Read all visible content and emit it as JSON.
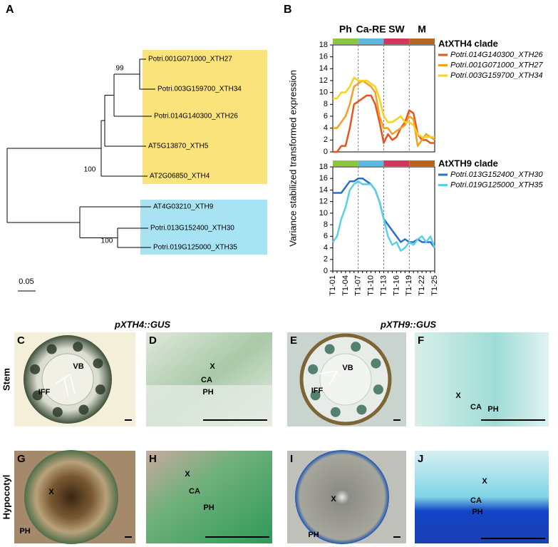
{
  "figure": {
    "panel_a": {
      "letter": "A",
      "leaves": [
        "Potri.001G071000_XTH27",
        "Potri.003G159700_XTH34",
        "Potri.014G140300_XTH26",
        "AT5G13870_XTH5",
        "AT2G06850_XTH4",
        "AT4G03210_XTH9",
        "Potri.013G152400_XTH30",
        "Potri.019G125000_XTH35"
      ],
      "bootstrap": [
        99,
        100,
        100
      ],
      "scale": 0.05
    },
    "panel_b": {
      "letter": "B"
    },
    "column_headings": [
      "pXTH4::GUS",
      "pXTH9::GUS"
    ],
    "row_labels": [
      "Stem",
      "Hypocotyl"
    ],
    "panels": [
      {
        "letter": "C",
        "labels": [
          "VB",
          "IFF"
        ]
      },
      {
        "letter": "D",
        "labels": [
          "X",
          "CA",
          "PH"
        ]
      },
      {
        "letter": "E",
        "labels": [
          "VB",
          "IFF"
        ]
      },
      {
        "letter": "F",
        "labels": [
          "X",
          "CA",
          "PH"
        ]
      },
      {
        "letter": "G",
        "labels": [
          "X",
          "PH"
        ]
      },
      {
        "letter": "H",
        "labels": [
          "X",
          "CA",
          "PH"
        ]
      },
      {
        "letter": "I",
        "labels": [
          "X",
          "PH"
        ]
      },
      {
        "letter": "J",
        "labels": [
          "X",
          "CA",
          "PH"
        ]
      }
    ]
  },
  "chart_data": [
    {
      "type": "line",
      "ylabel": "Variance stabilized transformed expression",
      "legend_title": "AtXTH4 clade",
      "stages": [
        {
          "label": "Ph",
          "color": "#8cc63e"
        },
        {
          "label": "Ca-RE",
          "color": "#5bb8e0"
        },
        {
          "label": "SW",
          "color": "#d2365a"
        },
        {
          "label": "M",
          "color": "#b5651d"
        }
      ],
      "ylim": [
        0,
        18
      ],
      "yticks": [
        0,
        2,
        4,
        6,
        8,
        10,
        12,
        14,
        16,
        18
      ],
      "series": [
        {
          "name": "Potri.014G140300_XTH26",
          "color": "#e8541e",
          "values": [
            0,
            0,
            1,
            1,
            4,
            8,
            8.5,
            9,
            9.5,
            9.5,
            8,
            5,
            1.5,
            3,
            2,
            2.5,
            4,
            5,
            7,
            6.5,
            3,
            2,
            2,
            1.5,
            1.5
          ]
        },
        {
          "name": "Potri.001G071000_XTH27",
          "color": "#f5a020",
          "values": [
            4,
            4,
            5,
            6,
            8,
            11,
            11.5,
            12,
            11.5,
            11,
            10,
            6,
            4,
            4,
            3,
            3.5,
            4,
            4.5,
            6,
            5.5,
            1,
            2,
            3,
            2.5,
            2
          ]
        },
        {
          "name": "Potri.003G159700_XTH34",
          "color": "#f8d21e",
          "values": [
            9,
            9,
            10,
            10,
            11,
            12.5,
            12,
            12,
            12,
            11.5,
            11,
            9,
            6,
            5,
            5,
            5.5,
            6,
            5,
            5,
            4.5,
            3,
            2.5,
            2.5,
            2.5,
            2.5
          ]
        }
      ]
    },
    {
      "type": "line",
      "legend_title": "AtXTH9 clade",
      "categories": [
        "T1-01",
        null,
        null,
        "T1-04",
        null,
        null,
        "T1-07",
        null,
        null,
        "T1-10",
        null,
        null,
        "T1-13",
        null,
        null,
        "T1-16",
        null,
        null,
        "T1-19",
        null,
        null,
        "T1-22",
        null,
        null,
        "T1-25"
      ],
      "ylim": [
        0,
        18
      ],
      "yticks": [
        0,
        2,
        4,
        6,
        8,
        10,
        12,
        14,
        16,
        18
      ],
      "series": [
        {
          "name": "Potri.013G152400_XTH30",
          "color": "#2a6fc9",
          "values": [
            13.5,
            13.5,
            13.5,
            14.5,
            15.5,
            15.5,
            16,
            16,
            15.5,
            15,
            14,
            12,
            9,
            8,
            7,
            6,
            5,
            5.5,
            5,
            5,
            5.5,
            5,
            5,
            5,
            4
          ]
        },
        {
          "name": "Potri.019G125000_XTH35",
          "color": "#5bcfe8",
          "values": [
            5,
            6,
            9,
            11,
            14,
            15,
            15.5,
            15,
            15,
            15,
            14,
            12,
            9,
            6,
            4.5,
            5,
            3.5,
            4,
            5,
            4.5,
            5.5,
            6,
            5,
            6,
            4
          ]
        }
      ]
    }
  ]
}
